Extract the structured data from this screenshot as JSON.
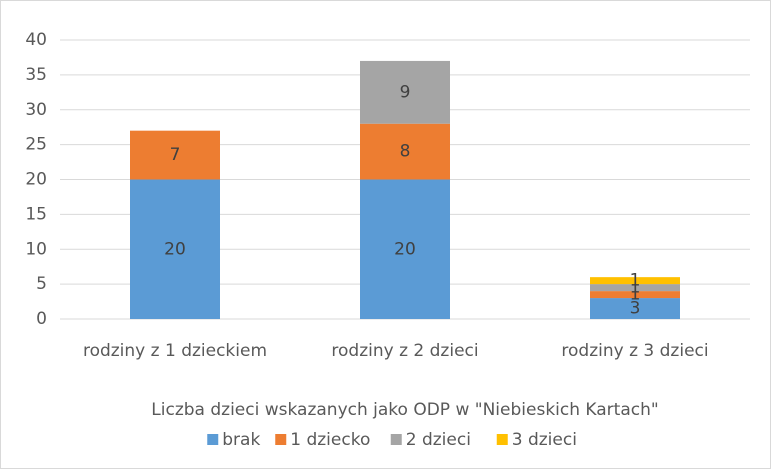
{
  "chart_data": {
    "type": "stacked_bar",
    "categories": [
      "rodziny z 1 dzieckiem",
      "rodziny z 2 dzieci",
      "rodziny z 3 dzieci"
    ],
    "series": [
      {
        "name": "brak",
        "color": "#5b9bd5",
        "values": [
          20,
          20,
          3
        ]
      },
      {
        "name": "1 dziecko",
        "color": "#ed7d31",
        "values": [
          7,
          8,
          1
        ]
      },
      {
        "name": "2 dzieci",
        "color": "#a5a5a5",
        "values": [
          null,
          9,
          1
        ]
      },
      {
        "name": "3 dzieci",
        "color": "#ffc000",
        "values": [
          null,
          null,
          1
        ]
      }
    ],
    "x_label": "Liczba dzieci wskazanych jako ODP w \"Niebieskich Kartach\"",
    "ylim": [
      0,
      40
    ],
    "yticks": [
      0,
      5,
      10,
      15,
      20,
      25,
      30,
      35,
      40
    ],
    "grid": true,
    "legend": "bottom"
  }
}
